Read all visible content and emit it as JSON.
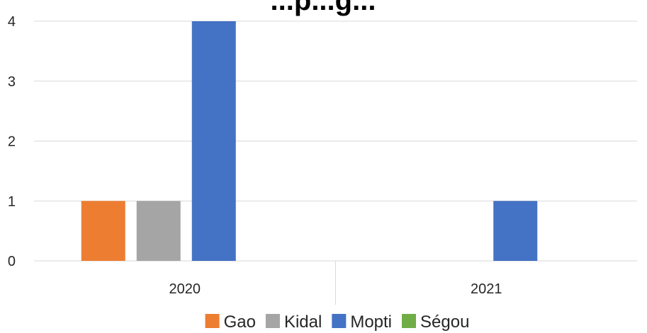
{
  "chart_data": {
    "type": "bar",
    "title": "...p...g...",
    "categories": [
      "2020",
      "2021"
    ],
    "series": [
      {
        "name": "Gao",
        "color": "#ED7D31",
        "values": [
          1,
          0
        ]
      },
      {
        "name": "Kidal",
        "color": "#A5A5A5",
        "values": [
          1,
          0
        ]
      },
      {
        "name": "Mopti",
        "color": "#4472C4",
        "values": [
          4,
          1
        ]
      },
      {
        "name": "Ségou",
        "color": "#70AD47",
        "values": [
          0,
          0
        ]
      }
    ],
    "ylim": [
      0,
      4
    ],
    "yticks": [
      "0",
      "1",
      "2",
      "3",
      "4"
    ],
    "grid": true,
    "legend_position": "bottom",
    "gridline_color": "#D9D9D9",
    "axis_color": "#D9D9D9"
  }
}
